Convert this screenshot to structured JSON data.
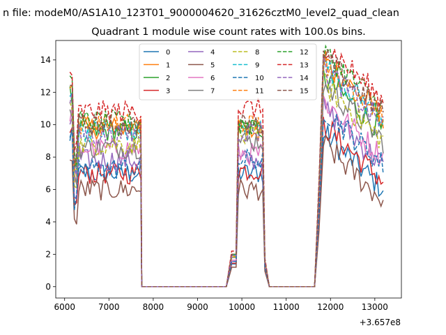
{
  "figure": {
    "suptitle": "n file: modeM0/AS1A10_123T01_9000004620_31626cztM0_level2_quad_clean",
    "title": "Quadrant 1 module wise count rates with 100.0s bins.",
    "x_offset_label": "+3.657e8"
  },
  "chart_data": {
    "type": "line",
    "title": "Quadrant 1 module wise count rates with 100.0s bins.",
    "xlabel": "",
    "ylabel": "",
    "x_offset": 365700000,
    "xlim": [
      5800,
      13600
    ],
    "ylim": [
      -0.7,
      15.2
    ],
    "xticks": [
      6000,
      7000,
      8000,
      9000,
      10000,
      11000,
      12000,
      13000
    ],
    "xtick_labels": [
      "6000",
      "7000",
      "8000",
      "9000",
      "10000",
      "11000",
      "12000",
      "13000"
    ],
    "yticks": [
      0,
      2,
      4,
      6,
      8,
      10,
      12,
      14
    ],
    "ytick_labels": [
      "0",
      "2",
      "4",
      "6",
      "8",
      "10",
      "12",
      "14"
    ],
    "legend": {
      "placement": "top-center",
      "columns": 4
    },
    "segments": [
      {
        "start": 6120,
        "end": 7720
      },
      {
        "start": 9650,
        "end": 10620
      },
      {
        "start": 11640,
        "end": 13220
      }
    ],
    "series": [
      {
        "name": "0",
        "color": "#1f77b4",
        "dash": false,
        "levels": [
          7.0,
          7.0,
          7.5
        ]
      },
      {
        "name": "1",
        "color": "#ff7f0e",
        "dash": false,
        "levels": [
          9.8,
          9.5,
          12.0
        ]
      },
      {
        "name": "2",
        "color": "#2ca02c",
        "dash": false,
        "levels": [
          9.6,
          9.8,
          11.0
        ]
      },
      {
        "name": "3",
        "color": "#d62728",
        "dash": false,
        "levels": [
          7.0,
          7.2,
          8.0
        ]
      },
      {
        "name": "4",
        "color": "#9467bd",
        "dash": false,
        "levels": [
          7.8,
          7.8,
          9.0
        ]
      },
      {
        "name": "5",
        "color": "#8c564b",
        "dash": false,
        "levels": [
          6.0,
          6.0,
          6.8
        ]
      },
      {
        "name": "6",
        "color": "#e377c2",
        "dash": false,
        "levels": [
          8.5,
          8.2,
          9.5
        ]
      },
      {
        "name": "7",
        "color": "#7f7f7f",
        "dash": false,
        "levels": [
          8.6,
          9.0,
          10.5
        ]
      },
      {
        "name": "8",
        "color": "#bcbd22",
        "dash": true,
        "levels": [
          8.8,
          9.2,
          10.5
        ]
      },
      {
        "name": "9",
        "color": "#17becf",
        "dash": true,
        "levels": [
          9.6,
          9.8,
          11.8
        ]
      },
      {
        "name": "10",
        "color": "#1f77b4",
        "dash": true,
        "levels": [
          7.3,
          7.8,
          9.0
        ]
      },
      {
        "name": "11",
        "color": "#ff7f0e",
        "dash": true,
        "levels": [
          10.0,
          10.0,
          12.0
        ]
      },
      {
        "name": "12",
        "color": "#2ca02c",
        "dash": true,
        "levels": [
          10.2,
          10.0,
          12.5
        ]
      },
      {
        "name": "13",
        "color": "#d62728",
        "dash": true,
        "levels": [
          10.8,
          11.0,
          13.0
        ]
      },
      {
        "name": "14",
        "color": "#9467bd",
        "dash": true,
        "levels": [
          9.4,
          9.6,
          11.5
        ]
      },
      {
        "name": "15",
        "color": "#8c564b",
        "dash": true,
        "levels": [
          10.0,
          10.0,
          12.2
        ]
      }
    ]
  }
}
